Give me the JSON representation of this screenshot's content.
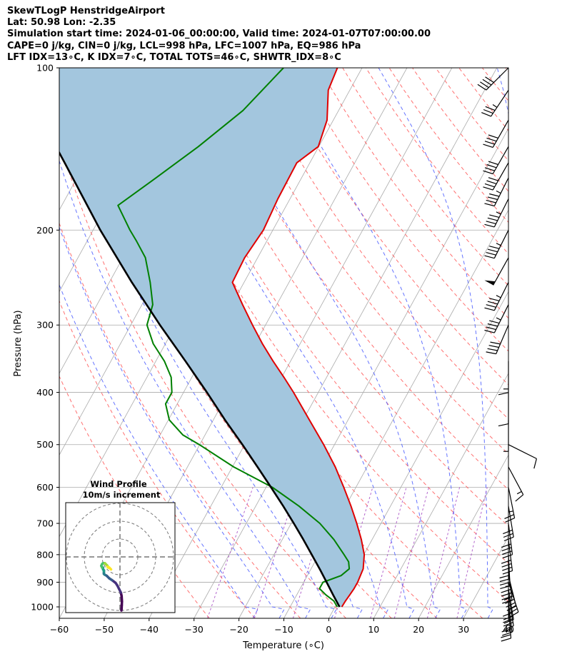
{
  "title_lines": [
    "SkewTLogP HenstridgeAirport",
    "Lat: 50.98   Lon: -2.35",
    "Simulation start time: 2024-01-06_00:00:00, Valid time: 2024-01-07T07:00:00.00",
    "CAPE=0 j/kg, CIN=0 j/kg, LCL=998 hPa, LFC=1007 hPa, EQ=986 hPa",
    "LFT IDX=13∘C, K IDX=7∘C, TOTAL TOTS=46∘C, SHWTR_IDX=8∘C"
  ],
  "chart_data": {
    "type": "line",
    "subtype": "skew-t log-p",
    "xlabel": "Temperature (∘C)",
    "ylabel": "Pressure (hPa)",
    "xlim": [
      -60,
      40
    ],
    "ylim": [
      1050,
      100
    ],
    "y_scale": "log",
    "x_ticks": [
      "−60",
      "−50",
      "−40",
      "−30",
      "−20",
      "−10",
      "0",
      "10",
      "20",
      "30",
      "40"
    ],
    "y_ticks": [
      1000,
      900,
      800,
      700,
      600,
      500,
      400,
      300,
      200,
      100
    ],
    "grid": true,
    "colors": {
      "temperature": "#e00000",
      "dewpoint": "#008000",
      "parcel": "#000000",
      "cape_fill": "#a3c6de",
      "dry_adiabats": "#ff6060",
      "moist_adiabats": "#4a5cff",
      "mixing_ratio": "#a040c0",
      "isotherms": "#aaaaaa"
    },
    "series": [
      {
        "key": "temperature",
        "pressure": [
          1000,
          975,
          950,
          925,
          900,
          850,
          800,
          750,
          700,
          650,
          600,
          550,
          500,
          450,
          400,
          375,
          350,
          325,
          300,
          275,
          250,
          225,
          200,
          175,
          150,
          140,
          125,
          110,
          100
        ],
        "temperature": [
          1.5,
          1.6,
          1.8,
          2.0,
          2.0,
          1.6,
          0.1,
          -2.4,
          -5.4,
          -8.8,
          -12.7,
          -17.1,
          -22.4,
          -28.6,
          -35.5,
          -39.5,
          -43.9,
          -48.4,
          -52.9,
          -57.6,
          -62.6,
          -62.9,
          -62.1,
          -62.7,
          -62.9,
          -60.1,
          -61.4,
          -64.8,
          -65.5
        ]
      },
      {
        "key": "dewpoint",
        "pressure": [
          1000,
          975,
          950,
          925,
          900,
          875,
          850,
          825,
          800,
          750,
          700,
          650,
          600,
          550,
          500,
          480,
          450,
          420,
          400,
          375,
          350,
          325,
          300,
          275,
          250,
          225,
          210,
          200,
          180,
          160,
          140,
          120,
          100
        ],
        "temperature": [
          0.5,
          -1.0,
          -3.5,
          -5.7,
          -5.7,
          -2.5,
          -1.5,
          -2.5,
          -4.4,
          -8.5,
          -13.6,
          -20.4,
          -28.6,
          -39.7,
          -50.1,
          -54.9,
          -59.8,
          -62.6,
          -62.6,
          -64.6,
          -68.1,
          -72.7,
          -76.4,
          -77.6,
          -80.9,
          -85.0,
          -88.9,
          -91.8,
          -97.5,
          -92.4,
          -86.8,
          -81.3,
          -77.5
        ]
      },
      {
        "key": "parcel",
        "pressure": [
          1000,
          950,
          900,
          850,
          800,
          750,
          700,
          650,
          600,
          550,
          500,
          450,
          400,
          350,
          300,
          250,
          200,
          150,
          120,
          100
        ],
        "temperature": [
          1.0,
          -1.9,
          -4.9,
          -8.1,
          -11.6,
          -15.3,
          -19.4,
          -23.9,
          -28.9,
          -34.4,
          -40.5,
          -47.4,
          -54.8,
          -63.4,
          -73.5,
          -85.0,
          -98.4,
          -114.6,
          -127.2,
          -136.3
        ]
      }
    ],
    "hodograph": {
      "title": "Wind Profile",
      "subtitle": "10m/s increment",
      "u": [
        0.8,
        0.9,
        1.0,
        1.1,
        0.9,
        0.5,
        -0.5,
        -1.5,
        -2.5,
        -4.5,
        -6.0,
        -7.0,
        -7.5,
        -8.5,
        -9.0,
        -9.0,
        -9.0,
        -9.0,
        -9.0,
        -9.5,
        -9.5,
        -10.0,
        -10.5,
        -10.0,
        -9.5,
        -8.5,
        -8.0,
        -7.5,
        -7.0,
        -7.0,
        -6.5,
        -6.0,
        -5.5,
        -5.0
      ],
      "v": [
        -30.0,
        -29.0,
        -27.0,
        -25.0,
        -22.0,
        -20.0,
        -18.0,
        -16.0,
        -14.5,
        -13.0,
        -12.0,
        -11.0,
        -10.5,
        -10.0,
        -9.5,
        -9.0,
        -8.5,
        -8.0,
        -7.5,
        -7.0,
        -6.0,
        -6.0,
        -5.0,
        -4.0,
        -3.5,
        -3.5,
        -4.0,
        -4.5,
        -5.0,
        -5.5,
        -6.0,
        -6.0,
        -6.5,
        -7.0
      ],
      "rings_ms": [
        10,
        20,
        30
      ]
    },
    "wind_barbs": {
      "pressure": [
        1000,
        975,
        950,
        925,
        900,
        875,
        850,
        800,
        750,
        700,
        650,
        600,
        550,
        500,
        450,
        400,
        350,
        300,
        275,
        250,
        225,
        200,
        175,
        160,
        150,
        140,
        125,
        110,
        100
      ],
      "u_kt": [
        -2,
        -3,
        -5,
        -5,
        -10,
        -10,
        -5,
        -2,
        -5,
        -5,
        -5,
        -5,
        -8,
        -10,
        0,
        0,
        0,
        15,
        20,
        20,
        25,
        20,
        20,
        20,
        20,
        20,
        20,
        20,
        30
      ],
      "v_kt": [
        25,
        27,
        30,
        30,
        30,
        40,
        45,
        40,
        40,
        40,
        30,
        25,
        15,
        5,
        5,
        10,
        15,
        35,
        40,
        40,
        45,
        40,
        40,
        40,
        35,
        35,
        35,
        30,
        30
      ]
    }
  }
}
